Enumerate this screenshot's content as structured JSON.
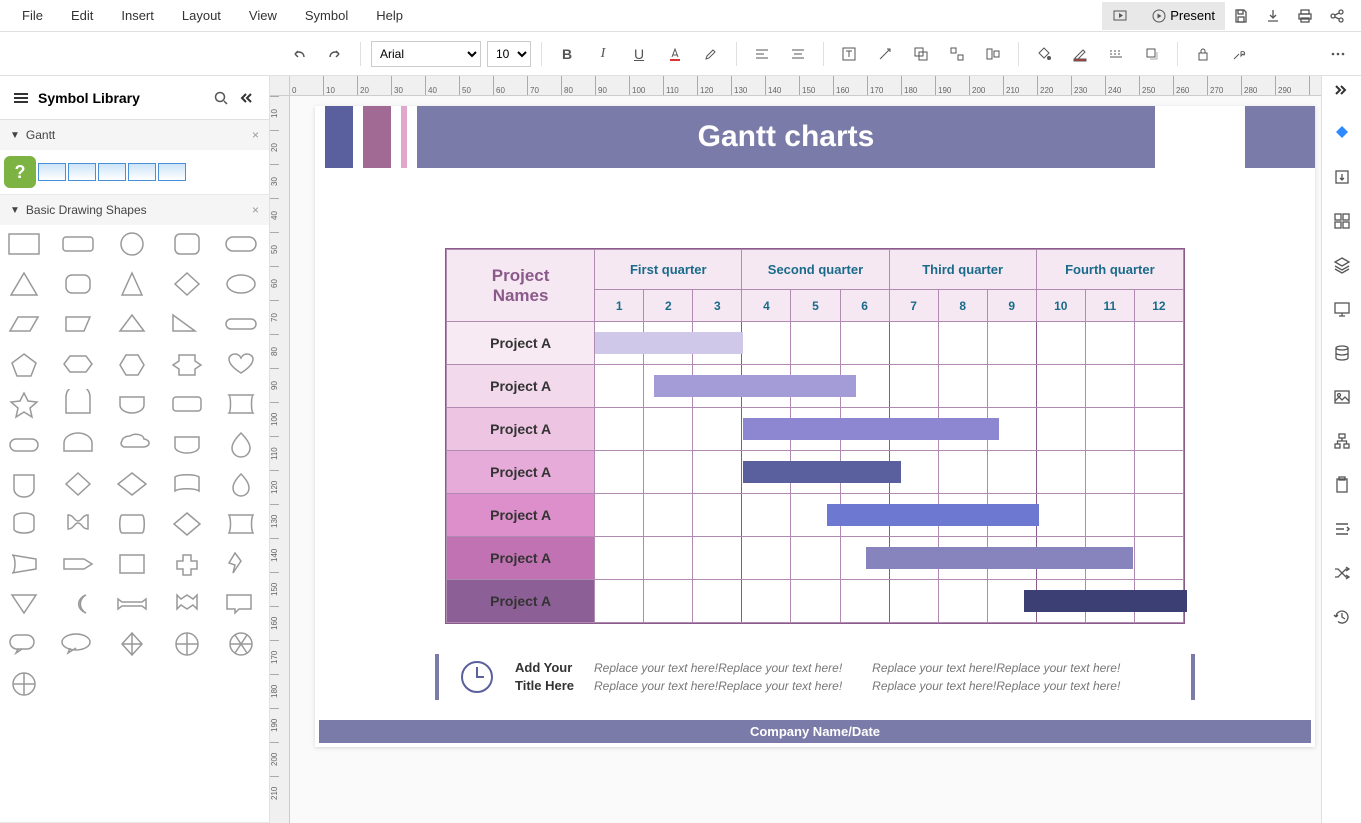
{
  "menu": {
    "items": [
      "File",
      "Edit",
      "Insert",
      "Layout",
      "View",
      "Symbol",
      "Help"
    ],
    "present": "Present"
  },
  "toolbar": {
    "font": "Arial",
    "size": "10"
  },
  "sidebar": {
    "title": "Symbol Library",
    "sections": {
      "gantt": "Gantt",
      "shapes": "Basic Drawing Shapes"
    }
  },
  "ruler_h": [
    0,
    10,
    20,
    30,
    40,
    50,
    60,
    70,
    80,
    90,
    100,
    110,
    120,
    130,
    140,
    150,
    160,
    170,
    180,
    190,
    200,
    210,
    220,
    230,
    240,
    250,
    260,
    270,
    280,
    290
  ],
  "ruler_v": [
    10,
    20,
    30,
    40,
    50,
    60,
    70,
    80,
    90,
    100,
    110,
    120,
    130,
    140,
    150,
    160,
    170,
    180,
    190,
    200,
    210
  ],
  "chart": {
    "title": "Gantt charts",
    "project_header": "Project\nNames",
    "quarters": [
      "First quarter",
      "Second quarter",
      "Third quarter",
      "Fourth quarter"
    ],
    "months": [
      1,
      2,
      3,
      4,
      5,
      6,
      7,
      8,
      9,
      10,
      11,
      12
    ],
    "rows": [
      {
        "label": "Project A",
        "label_bg": "#f7eaf3",
        "bar_start": 1,
        "bar_end": 4,
        "bar_color": "#cfc8e8"
      },
      {
        "label": "Project A",
        "label_bg": "#f2d9ec",
        "bar_start": 2.2,
        "bar_end": 6.3,
        "bar_color": "#a49cd7"
      },
      {
        "label": "Project A",
        "label_bg": "#edc5e3",
        "bar_start": 4,
        "bar_end": 9.2,
        "bar_color": "#8d86d0"
      },
      {
        "label": "Project A",
        "label_bg": "#e6abd8",
        "bar_start": 4,
        "bar_end": 7.2,
        "bar_color": "#5a5f9e"
      },
      {
        "label": "Project A",
        "label_bg": "#dc8fcb",
        "bar_start": 5.7,
        "bar_end": 10.0,
        "bar_color": "#6d79d1"
      },
      {
        "label": "Project A",
        "label_bg": "#c172b3",
        "bar_start": 6.5,
        "bar_end": 11.9,
        "bar_color": "#8683bd"
      },
      {
        "label": "Project A",
        "label_bg": "#8c5f96",
        "bar_start": 9.7,
        "bar_end": 13,
        "bar_color": "#3c3f73"
      }
    ],
    "month_width": 49.3
  },
  "note": {
    "title1": "Add Your",
    "title2": "Title Here",
    "text": "Replace your text here!Replace your text here!",
    "text2": "Replace your text here!Replace your text here!"
  },
  "footer": "Company Name/Date",
  "colors": {
    "banner": "#7a7ba8",
    "stripe1": "#5a5f9e",
    "stripe2": "#a06a95",
    "stripe3": "#e0a8cc",
    "table_border": "#b08ab0",
    "table_hdr_bg": "#f5e8f2",
    "proj_hdr_color": "#8a5a8a",
    "q_hdr_color": "#1a6b8a"
  }
}
